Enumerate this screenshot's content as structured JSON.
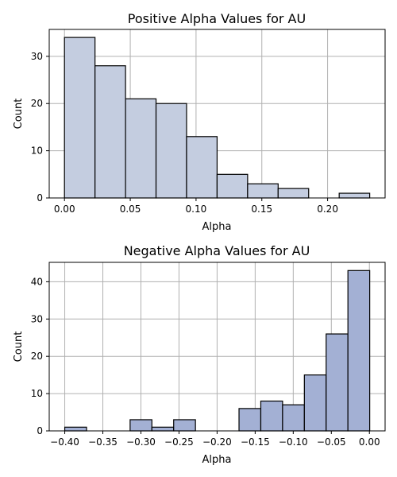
{
  "chart_data": [
    {
      "type": "bar",
      "title": "Positive Alpha Values for AU",
      "xlabel": "Alpha",
      "ylabel": "Count",
      "xlim": [
        -0.0116,
        0.2437
      ],
      "ylim": [
        0,
        35.7
      ],
      "xticks": [
        0.0,
        0.05,
        0.1,
        0.15,
        0.2
      ],
      "xtick_labels": [
        "0.00",
        "0.05",
        "0.10",
        "0.15",
        "0.20"
      ],
      "yticks": [
        0,
        10,
        20,
        30
      ],
      "ytick_labels": [
        "0",
        "10",
        "20",
        "30"
      ],
      "grid": true,
      "color": "#c4cde0",
      "bins": [
        {
          "x0": 0.0,
          "x1": 0.0232,
          "count": 34
        },
        {
          "x0": 0.0232,
          "x1": 0.0464,
          "count": 28
        },
        {
          "x0": 0.0464,
          "x1": 0.0696,
          "count": 21
        },
        {
          "x0": 0.0696,
          "x1": 0.0928,
          "count": 20
        },
        {
          "x0": 0.0928,
          "x1": 0.116,
          "count": 13
        },
        {
          "x0": 0.116,
          "x1": 0.1392,
          "count": 5
        },
        {
          "x0": 0.1392,
          "x1": 0.1624,
          "count": 3
        },
        {
          "x0": 0.1624,
          "x1": 0.1856,
          "count": 2
        },
        {
          "x0": 0.1856,
          "x1": 0.2088,
          "count": 0
        },
        {
          "x0": 0.2088,
          "x1": 0.232,
          "count": 1
        }
      ]
    },
    {
      "type": "bar",
      "title": "Negative Alpha Values for AU",
      "xlabel": "Alpha",
      "ylabel": "Count",
      "xlim": [
        -0.4204,
        0.0206
      ],
      "ylim": [
        0,
        45.2
      ],
      "xticks": [
        -0.4,
        -0.35,
        -0.3,
        -0.25,
        -0.2,
        -0.15,
        -0.1,
        -0.05,
        0.0
      ],
      "xtick_labels": [
        "−0.40",
        "−0.35",
        "−0.30",
        "−0.25",
        "−0.20",
        "−0.15",
        "−0.10",
        "−0.05",
        "0.00"
      ],
      "yticks": [
        0,
        10,
        20,
        30,
        40
      ],
      "ytick_labels": [
        "0",
        "10",
        "20",
        "30",
        "40"
      ],
      "grid": true,
      "color": "#a3b0d4",
      "bins": [
        {
          "x0": -0.4,
          "x1": -0.3714,
          "count": 1
        },
        {
          "x0": -0.3714,
          "x1": -0.3428,
          "count": 0
        },
        {
          "x0": -0.3428,
          "x1": -0.3142,
          "count": 0
        },
        {
          "x0": -0.3142,
          "x1": -0.2856,
          "count": 3
        },
        {
          "x0": -0.2856,
          "x1": -0.257,
          "count": 1
        },
        {
          "x0": -0.257,
          "x1": -0.2284,
          "count": 3
        },
        {
          "x0": -0.2284,
          "x1": -0.1998,
          "count": 0
        },
        {
          "x0": -0.1998,
          "x1": -0.1712,
          "count": 0
        },
        {
          "x0": -0.1712,
          "x1": -0.1426,
          "count": 6
        },
        {
          "x0": -0.1426,
          "x1": -0.114,
          "count": 8
        },
        {
          "x0": -0.114,
          "x1": -0.0854,
          "count": 7
        },
        {
          "x0": -0.0854,
          "x1": -0.0568,
          "count": 15
        },
        {
          "x0": -0.0568,
          "x1": -0.0282,
          "count": 26
        },
        {
          "x0": -0.0282,
          "x1": 0.0004,
          "count": 43
        }
      ]
    }
  ]
}
